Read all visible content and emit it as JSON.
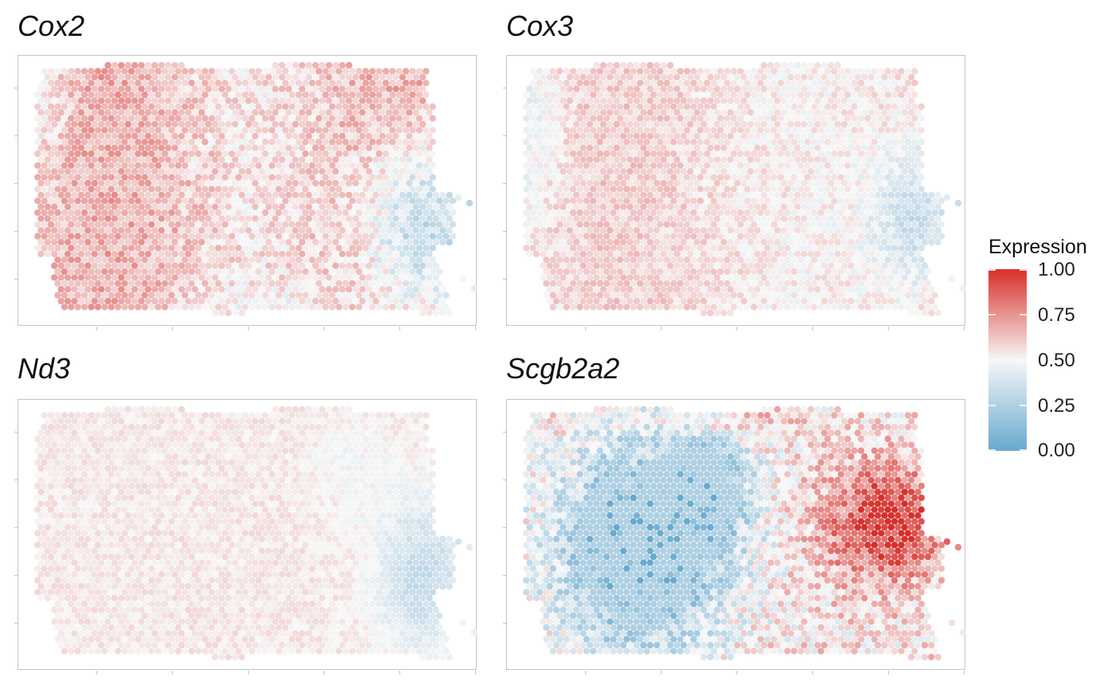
{
  "chart_data": {
    "type": "scatter",
    "subtype": "spatial-expression-map",
    "panels": [
      {
        "gene": "Cox2",
        "pattern": "cox2"
      },
      {
        "gene": "Cox3",
        "pattern": "cox3"
      },
      {
        "gene": "Nd3",
        "pattern": "nd3"
      },
      {
        "gene": "Scgb2a2",
        "pattern": "scgb"
      }
    ],
    "legend": {
      "title": "Expression",
      "ticks": [
        "1.00",
        "0.75",
        "0.50",
        "0.25",
        "0.00"
      ],
      "placement": "right",
      "colors": {
        "low": "#67a9cf",
        "mid": "#f7f7f7",
        "high": "#d7302b"
      },
      "range": [
        0,
        1
      ]
    },
    "axis_ticks_labels_shown": false,
    "grid": false
  }
}
